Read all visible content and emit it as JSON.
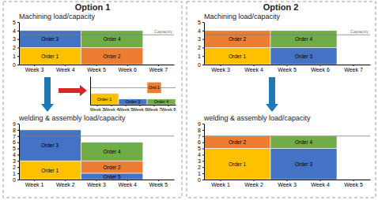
{
  "chart_data": [
    {
      "type": "gantt",
      "group": "Option 1",
      "title": "Machining load/capacity",
      "categories": [
        "Week 3",
        "Week 4",
        "Week 5",
        "Week 6",
        "Week 7"
      ],
      "bars": [
        {
          "label": "Order 3",
          "start": 0,
          "end": 2,
          "bottom": 2,
          "height": 2,
          "color": "#4472C4"
        },
        {
          "label": "Order 4",
          "start": 2,
          "end": 4,
          "bottom": 2,
          "height": 2,
          "color": "#70AD47"
        },
        {
          "label": "Order 1",
          "start": 0,
          "end": 2,
          "bottom": 0,
          "height": 2,
          "color": "#FFC000"
        },
        {
          "label": "Order 2",
          "start": 2,
          "end": 4,
          "bottom": 0,
          "height": 2,
          "color": "#ED7D31"
        }
      ],
      "capacity": 3.5,
      "capacity_label": "Capacity",
      "ylim": [
        0,
        5
      ],
      "yticks": [
        0,
        1,
        2,
        3,
        4,
        5
      ]
    },
    {
      "type": "gantt",
      "group": "Option 1",
      "title": "welding & assembly load/capacity",
      "categories": [
        "Week 1",
        "Week 2",
        "Week 3",
        "Week 4",
        "Week 5"
      ],
      "bars": [
        {
          "label": "Order 3",
          "start": 0,
          "end": 2,
          "bottom": 3,
          "height": 5,
          "color": "#4472C4"
        },
        {
          "label": "Order 1",
          "start": 0,
          "end": 2,
          "bottom": 0,
          "height": 3,
          "color": "#FFC000"
        },
        {
          "label": "Order 4",
          "start": 2,
          "end": 4,
          "bottom": 3,
          "height": 3,
          "color": "#70AD47"
        },
        {
          "label": "Order 2",
          "start": 2,
          "end": 4,
          "bottom": 1,
          "height": 2,
          "color": "#ED7D31"
        },
        {
          "label": "Order 5",
          "start": 2,
          "end": 4,
          "bottom": 0,
          "height": 1,
          "color": "#4472C4"
        }
      ],
      "capacity": 7,
      "ylim": [
        0,
        9
      ],
      "yticks": [
        0,
        1,
        2,
        3,
        4,
        5,
        6,
        7,
        8,
        9
      ]
    },
    {
      "type": "gantt",
      "group": "Option 1",
      "categories": [
        "Week 3",
        "Week 4",
        "Week 5",
        "Week 6",
        "Week 7",
        "Week 8"
      ],
      "bars": [
        {
          "label": "Order 1",
          "start": 0,
          "end": 2,
          "bottom": 0,
          "height": 2,
          "color": "#FFC000"
        },
        {
          "label": "Order 3",
          "start": 2,
          "end": 4,
          "bottom": 0,
          "height": 1,
          "color": "#4472C4"
        },
        {
          "label": "Ord 1",
          "start": 4,
          "end": 5,
          "bottom": 2,
          "height": 2,
          "color": "#ED7D31"
        },
        {
          "label": "Order 4",
          "start": 4,
          "end": 6,
          "bottom": 0,
          "height": 1,
          "color": "#70AD47"
        }
      ],
      "capacity": 3,
      "ylim": [
        0,
        5
      ],
      "tick_labels": "x"
    },
    {
      "type": "gantt",
      "group": "Option 2",
      "title": "Machining load/capacity",
      "categories": [
        "Week 3",
        "Week 4",
        "Week 5",
        "Week 6",
        "Week 7"
      ],
      "bars": [
        {
          "label": "Order 2",
          "start": 0,
          "end": 2,
          "bottom": 2,
          "height": 2,
          "color": "#ED7D31"
        },
        {
          "label": "Order 4",
          "start": 2,
          "end": 4,
          "bottom": 2,
          "height": 2,
          "color": "#70AD47"
        },
        {
          "label": "Order 1",
          "start": 0,
          "end": 2,
          "bottom": 0,
          "height": 2,
          "color": "#FFC000"
        },
        {
          "label": "Order 3",
          "start": 2,
          "end": 4,
          "bottom": 0,
          "height": 2,
          "color": "#4472C4"
        }
      ],
      "capacity": 3.5,
      "capacity_label": "Capacity",
      "ylim": [
        0,
        5
      ],
      "yticks": [
        0,
        1,
        2,
        3,
        4,
        5
      ]
    },
    {
      "type": "gantt",
      "group": "Option 2",
      "title": "welding & assembly load/capacity",
      "categories": [
        "Week 1",
        "Week 2",
        "Week 3",
        "Week 4",
        "Week 5"
      ],
      "bars": [
        {
          "label": "Order 2",
          "start": 0,
          "end": 2,
          "bottom": 5,
          "height": 2,
          "color": "#ED7D31"
        },
        {
          "label": "Order 4",
          "start": 2,
          "end": 4,
          "bottom": 5,
          "height": 2,
          "color": "#70AD47"
        },
        {
          "label": "Order 1",
          "start": 0,
          "end": 2,
          "bottom": 0,
          "height": 5,
          "color": "#FFC000"
        },
        {
          "label": "Order 3",
          "start": 2,
          "end": 4,
          "bottom": 0,
          "height": 5,
          "color": "#4472C4"
        }
      ],
      "capacity": 7,
      "ylim": [
        0,
        9
      ],
      "yticks": [
        0,
        1,
        2,
        3,
        4,
        5,
        6,
        7,
        8,
        9
      ]
    }
  ]
}
